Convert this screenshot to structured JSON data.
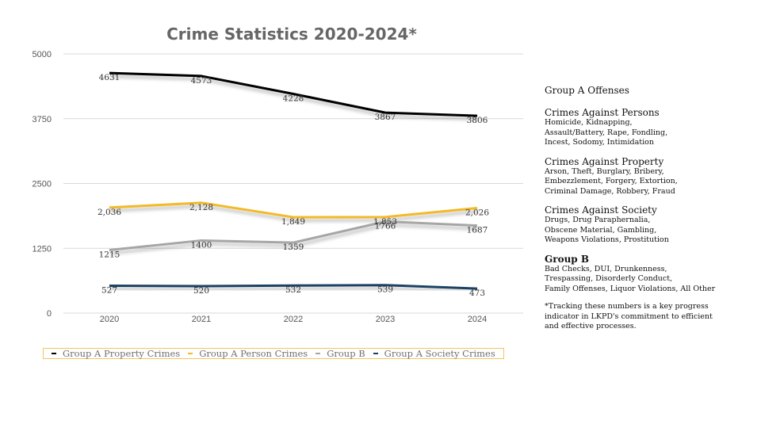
{
  "chart_data": {
    "type": "line",
    "title": "Crime Statistics 2020-2024*",
    "categories": [
      "2020",
      "2021",
      "2022",
      "2023",
      "2024"
    ],
    "ylim": [
      0,
      5000
    ],
    "yticks": [
      "0",
      "1250",
      "2500",
      "3750",
      "5000"
    ],
    "grid": true,
    "legend_position": "bottom",
    "series": [
      {
        "name": "Group A Property Crimes",
        "color": "#000000",
        "values": [
          4631,
          4573,
          4228,
          3867,
          3806
        ],
        "labels": [
          "4631",
          "4573",
          "4228",
          "3867",
          "3806"
        ]
      },
      {
        "name": "Group A Person Crimes",
        "color": "#f3b926",
        "values": [
          2036,
          2128,
          1849,
          1853,
          2026
        ],
        "labels": [
          "2,036",
          "2,128",
          "1,849",
          "1,853",
          "2,026"
        ]
      },
      {
        "name": "Group B",
        "color": "#a6a6a6",
        "values": [
          1215,
          1400,
          1359,
          1766,
          1687
        ],
        "labels": [
          "1215",
          "1400",
          "1359",
          "1766",
          "1687"
        ]
      },
      {
        "name": "Group A Society Crimes",
        "color": "#1b4264",
        "values": [
          527,
          520,
          532,
          539,
          473
        ],
        "labels": [
          "527",
          "520",
          "532",
          "539",
          "473"
        ]
      }
    ]
  },
  "sidebar": {
    "heading": "Group A Offenses",
    "persons": {
      "title": "Crimes Against Persons",
      "lines": [
        "Homicide, Kidnapping,",
        "Assault/Battery, Rape, Fondling,",
        "Incest, Sodomy, Intimidation"
      ]
    },
    "property": {
      "title": "Crimes Against Property",
      "lines": [
        "Arson, Theft, Burglary, Bribery,",
        "Embezzlement, Forgery, Extortion,",
        "Criminal Damage, Robbery, Fraud"
      ]
    },
    "society": {
      "title": "Crimes Against Society",
      "lines": [
        "Drugs, Drug Paraphernalia,",
        "Obscene Material, Gambling,",
        "Weapons Violations, Prostitution"
      ]
    },
    "groupb": {
      "title": "Group B",
      "lines": [
        "Bad Checks, DUI, Drunkenness,",
        "Trespassing, Disorderly Conduct,",
        "Family Offenses, Liquor Violations, All Other"
      ]
    },
    "note": [
      "*Tracking these numbers is a key progress",
      "indicator in LKPD's commitment to efficient",
      "and effective processes."
    ]
  }
}
